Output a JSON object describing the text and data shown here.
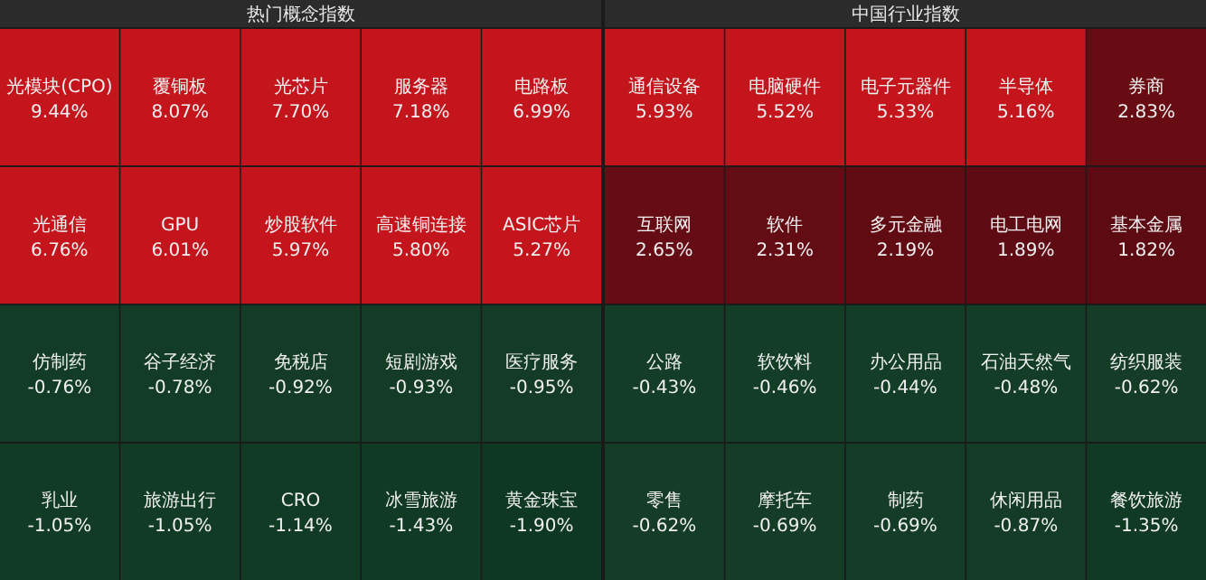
{
  "chart_data": [
    {
      "type": "other",
      "title": "热门概念指数",
      "categories": [
        "光模块(CPO)",
        "覆铜板",
        "光芯片",
        "服务器",
        "电路板",
        "光通信",
        "GPU",
        "炒股软件",
        "高速铜连接",
        "ASIC芯片",
        "仿制药",
        "谷子经济",
        "免税店",
        "短剧游戏",
        "医疗服务",
        "乳业",
        "旅游出行",
        "CRO",
        "冰雪旅游",
        "黄金珠宝"
      ],
      "values": [
        9.44,
        8.07,
        7.7,
        7.18,
        6.99,
        6.76,
        6.01,
        5.97,
        5.8,
        5.27,
        -0.76,
        -0.78,
        -0.92,
        -0.93,
        -0.95,
        -1.05,
        -1.05,
        -1.14,
        -1.43,
        -1.9
      ],
      "value_labels": [
        "9.44%",
        "8.07%",
        "7.70%",
        "7.18%",
        "6.99%",
        "6.76%",
        "6.01%",
        "5.97%",
        "5.80%",
        "5.27%",
        "-0.76%",
        "-0.78%",
        "-0.92%",
        "-0.93%",
        "-0.95%",
        "-1.05%",
        "-1.05%",
        "-1.14%",
        "-1.43%",
        "-1.90%"
      ]
    },
    {
      "type": "other",
      "title": "中国行业指数",
      "categories": [
        "通信设备",
        "电脑硬件",
        "电子元器件",
        "半导体",
        "券商",
        "互联网",
        "软件",
        "多元金融",
        "电工电网",
        "基本金属",
        "公路",
        "软饮料",
        "办公用品",
        "石油天然气",
        "纺织服装",
        "零售",
        "摩托车",
        "制药",
        "休闲用品",
        "餐饮旅游"
      ],
      "values": [
        5.93,
        5.52,
        5.33,
        5.16,
        2.83,
        2.65,
        2.31,
        2.19,
        1.89,
        1.82,
        -0.43,
        -0.46,
        -0.44,
        -0.48,
        -0.62,
        -0.62,
        -0.69,
        -0.69,
        -0.87,
        -1.35
      ],
      "value_labels": [
        "5.93%",
        "5.52%",
        "5.33%",
        "5.16%",
        "2.83%",
        "2.65%",
        "2.31%",
        "2.19%",
        "1.89%",
        "1.82%",
        "-0.43%",
        "-0.46%",
        "-0.44%",
        "-0.48%",
        "-0.62%",
        "-0.62%",
        "-0.69%",
        "-0.69%",
        "-0.87%",
        "-1.35%"
      ]
    }
  ]
}
